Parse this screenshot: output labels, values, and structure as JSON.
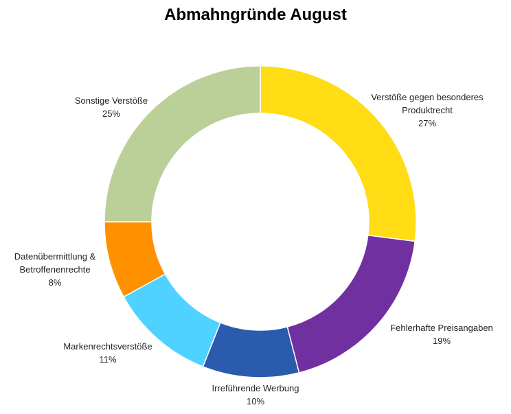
{
  "chart_data": {
    "type": "donut",
    "title": "Abmahngründe August",
    "categories": [
      "Verstöße gegen besonderes Produktrecht",
      "Fehlerhafte Preisangaben",
      "Irreführende Werbung",
      "Markenrechtsverstöße",
      "Datenübermittlung & Betroffenenrechte",
      "Sonstige Verstöße"
    ],
    "values": [
      27,
      19,
      10,
      11,
      8,
      25
    ],
    "value_labels": [
      "27%",
      "19%",
      "10%",
      "11%",
      "8%",
      "25%"
    ],
    "colors": [
      "#FFDC13",
      "#7030A0",
      "#2A5BAD",
      "#4FD2FF",
      "#FF9000",
      "#BBCF98"
    ]
  }
}
